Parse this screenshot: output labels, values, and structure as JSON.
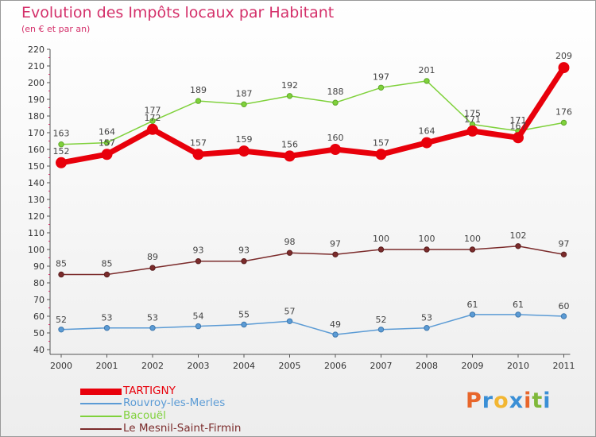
{
  "chart_data": {
    "type": "line",
    "title": "Evolution des Impôts locaux par Habitant",
    "subtitle": "(en € et par an)",
    "xlabel": "",
    "ylabel": "",
    "x": [
      "2000",
      "2001",
      "2002",
      "2003",
      "2004",
      "2005",
      "2006",
      "2007",
      "2008",
      "2009",
      "2010",
      "2011"
    ],
    "ylim": [
      40,
      220
    ],
    "yticks": [
      40,
      50,
      60,
      70,
      80,
      90,
      100,
      110,
      120,
      130,
      140,
      150,
      160,
      170,
      180,
      190,
      200,
      210,
      220
    ],
    "grid": false,
    "legend_position": "bottom-left",
    "series": [
      {
        "name": "TARTIGNY",
        "color": "#e8000b",
        "values": [
          152,
          157,
          172,
          157,
          159,
          156,
          160,
          157,
          164,
          171,
          167,
          209
        ],
        "labels": [
          "152",
          "157",
          "172",
          "157",
          "159",
          "156",
          "160",
          "157",
          "164",
          "171",
          "167",
          "209"
        ]
      },
      {
        "name": "Rouvroy-les-Merles",
        "color": "#5b9bd5",
        "values": [
          52,
          53,
          53,
          54,
          55,
          57,
          49,
          52,
          53,
          61,
          61,
          60
        ],
        "labels": [
          "52",
          "53",
          "53",
          "54",
          "55",
          "57",
          "49",
          "52",
          "53",
          "61",
          "61",
          "60"
        ]
      },
      {
        "name": "Bacouël",
        "color": "#7fd13b",
        "values": [
          163,
          164,
          177,
          189,
          187,
          192,
          188,
          197,
          201,
          175,
          171,
          176
        ],
        "labels": [
          "163",
          "164",
          "177",
          "189",
          "187",
          "192",
          "188",
          "197",
          "201",
          "175",
          "171",
          "176"
        ]
      },
      {
        "name": "Le Mesnil-Saint-Firmin",
        "color": "#7b2b2b",
        "values": [
          85,
          85,
          89,
          93,
          93,
          98,
          97,
          100,
          100,
          100,
          102,
          97
        ],
        "labels": [
          "85",
          "85",
          "89",
          "93",
          "93",
          "98",
          "97",
          "100",
          "100",
          "100",
          "102",
          "97"
        ]
      }
    ]
  },
  "logo": {
    "text": "Proxiti",
    "letters": [
      "P",
      "r",
      "o",
      "x",
      "i",
      "t",
      "i"
    ],
    "colors": [
      "#e8662b",
      "#3a8fd6",
      "#f2b632",
      "#3a8fd6",
      "#e8662b",
      "#7fb83a",
      "#3a8fd6"
    ]
  }
}
